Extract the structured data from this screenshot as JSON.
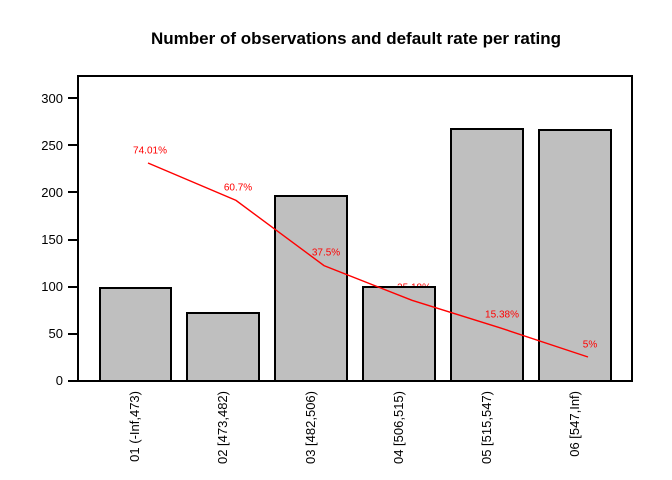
{
  "chart_data": {
    "type": "bar",
    "title": "Number of observations and default rate per rating",
    "categories": [
      "01 (-Inf,473)",
      "02 [473,482)",
      "03 [482,506)",
      "04 [506,515)",
      "05 [515,547)",
      "06 [547,Inf)"
    ],
    "series": [
      {
        "name": "number of observations",
        "type": "bar",
        "values": [
          98,
          72,
          196,
          100,
          267,
          266
        ]
      },
      {
        "name": "default rate",
        "type": "line",
        "values_percent": [
          74.01,
          60.7,
          37.5,
          25.18,
          15.38,
          5
        ],
        "labels": [
          "74.01%",
          "60.7%",
          "37.5%",
          "25.18%",
          "15.38%",
          "5%"
        ]
      }
    ],
    "xlabel": "",
    "ylabel": "",
    "yticks": [
      0,
      50,
      100,
      150,
      200,
      250,
      300
    ],
    "ylim": [
      0,
      320
    ],
    "grid": false,
    "legend": false,
    "colors": {
      "bar_fill": "#bfbfbf",
      "bar_border": "#000000",
      "line": "#ff0000",
      "rate_label": "#ff0000",
      "axis": "#000000",
      "background": "#ffffff"
    }
  }
}
